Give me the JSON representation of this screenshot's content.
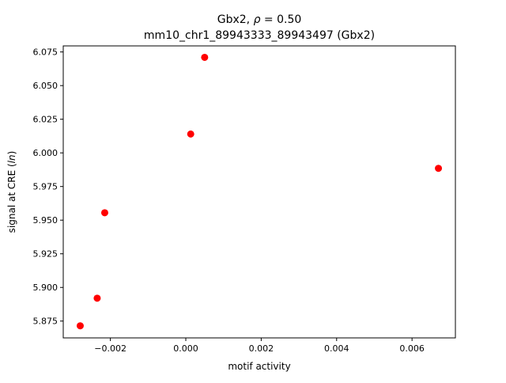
{
  "chart_data": {
    "type": "scatter",
    "title_line1_prefix": "Gbx2, ",
    "title_line1_rho": "ρ",
    "title_line1_suffix": " = 0.50",
    "title_line2": "mm10_chr1_89943333_89943497 (Gbx2)",
    "xlabel": "motif activity",
    "ylabel_prefix": "signal at CRE (",
    "ylabel_italic": "ln",
    "ylabel_suffix": ")",
    "xlim": [
      -0.00325,
      0.00715
    ],
    "ylim": [
      5.8625,
      6.0795
    ],
    "xticks": [
      -0.002,
      0.0,
      0.002,
      0.004,
      0.006
    ],
    "xtick_labels": [
      "−0.002",
      "0.000",
      "0.002",
      "0.004",
      "0.006"
    ],
    "yticks": [
      5.875,
      5.9,
      5.925,
      5.95,
      5.975,
      6.0,
      6.025,
      6.05,
      6.075
    ],
    "ytick_labels": [
      "5.875",
      "5.900",
      "5.925",
      "5.950",
      "5.975",
      "6.000",
      "6.025",
      "6.050",
      "6.075"
    ],
    "marker_color": "#ff0000",
    "points": [
      {
        "x": -0.0028,
        "y": 5.8715
      },
      {
        "x": -0.00235,
        "y": 5.892
      },
      {
        "x": -0.00215,
        "y": 5.9555
      },
      {
        "x": 0.00013,
        "y": 6.014
      },
      {
        "x": 0.0005,
        "y": 6.071
      },
      {
        "x": 0.0067,
        "y": 5.9885
      }
    ],
    "grid": false,
    "legend": null
  }
}
